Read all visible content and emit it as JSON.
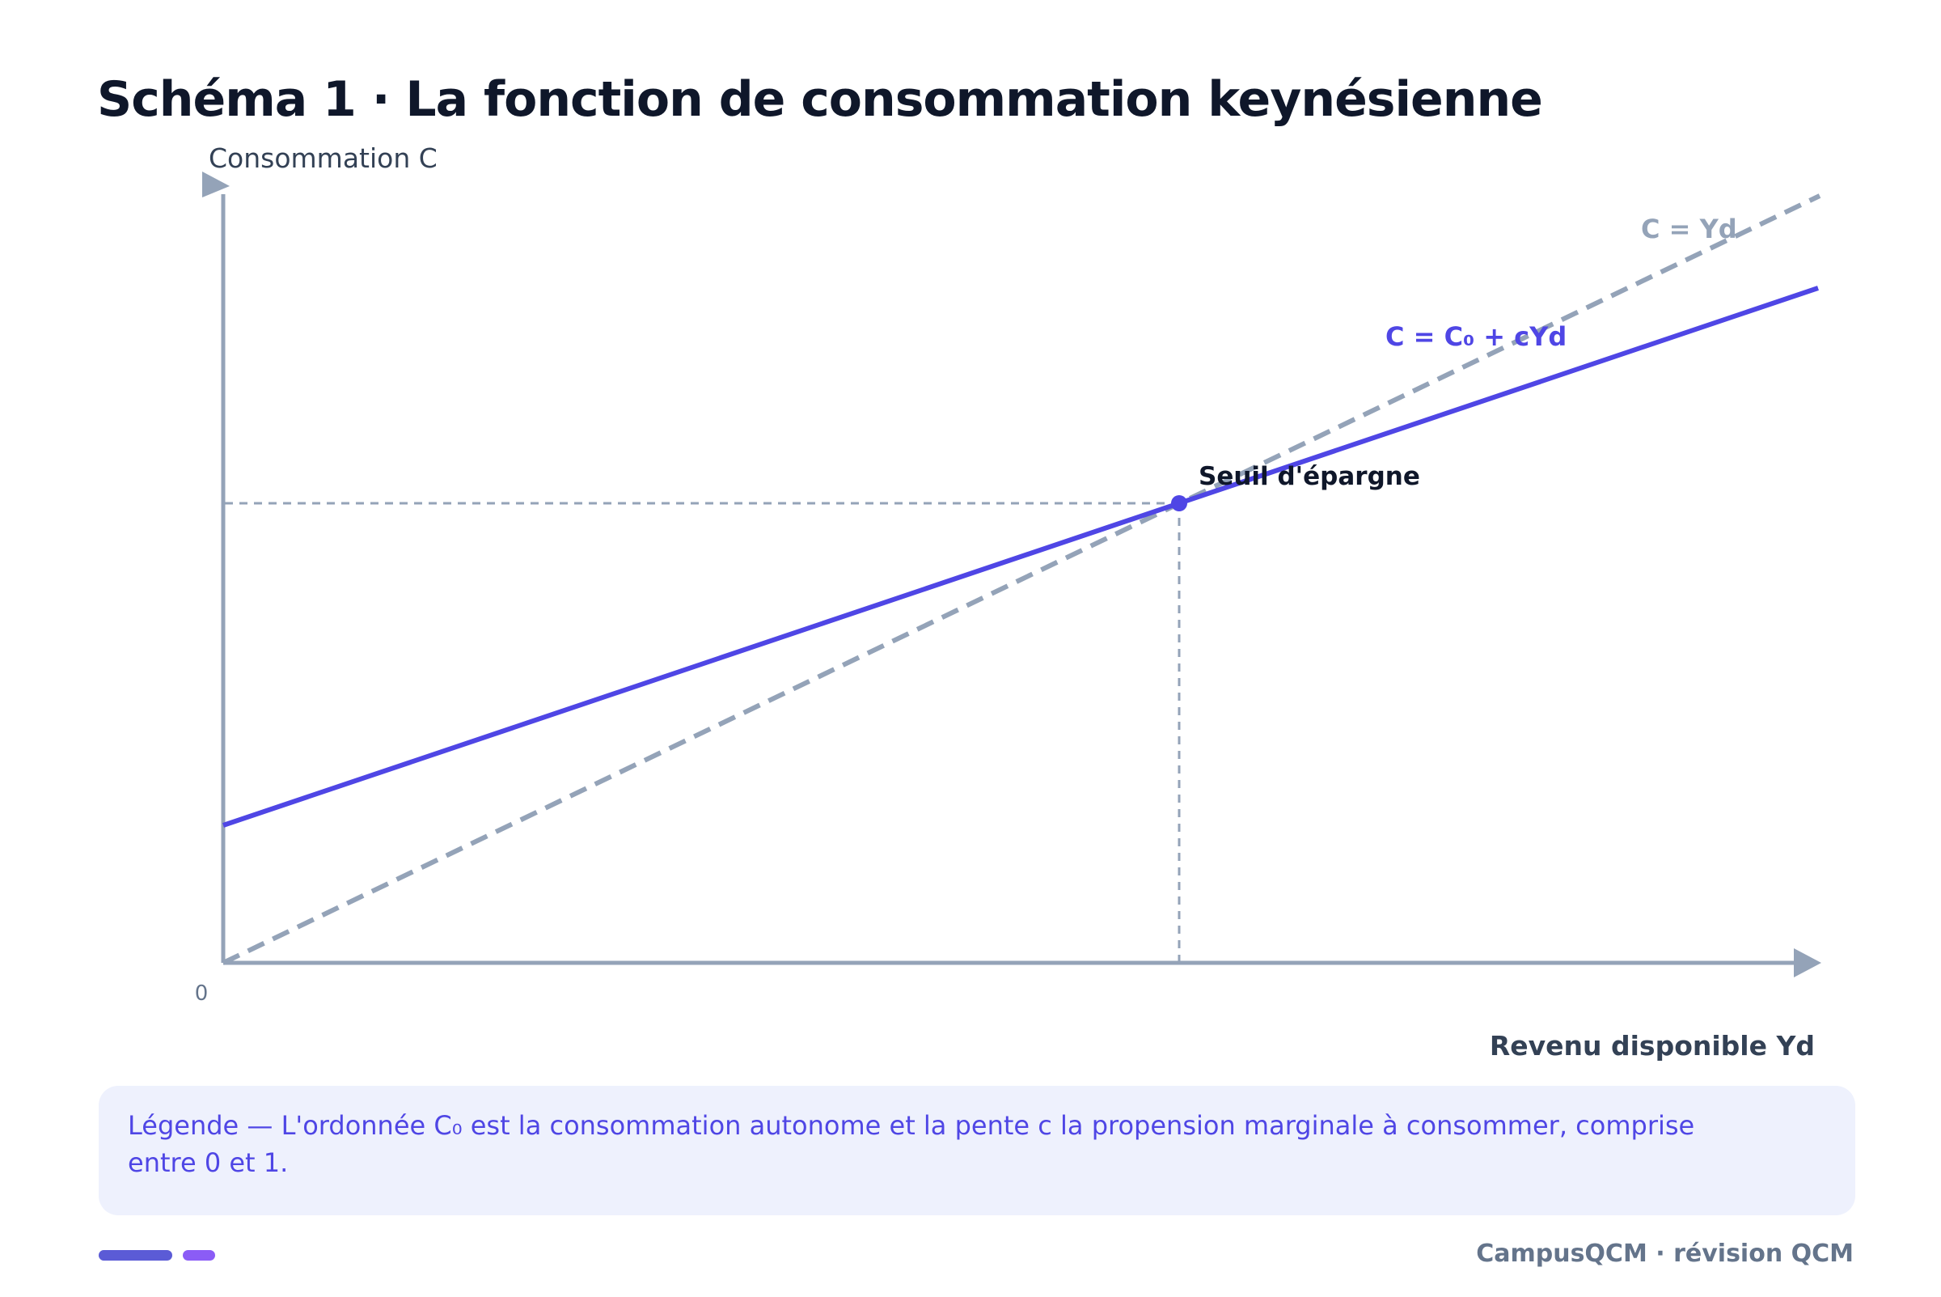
{
  "header": {
    "title": "Schéma 1 · La fonction de consommation keynésienne"
  },
  "diagram": {
    "y_axis_label": "Consommation C",
    "x_axis_label": "Revenu disponible Yd",
    "origin_label": "0",
    "line_45_label": "C = Yd",
    "consumption_label": "C = C₀ + cYd",
    "threshold_label": "Seuil d'épargne",
    "colors": {
      "axis": "#94a3b8",
      "consumption": "#4f46e5",
      "line_45": "#94a3b8",
      "guide": "#94a3b8"
    }
  },
  "legend": {
    "text": "Légende — L'ordonnée C₀ est la consommation autonome et la pente c la propension marginale à consommer, comprise entre 0 et 1."
  },
  "footer": {
    "brand": "CampusQCM · révision QCM",
    "accent_colors": [
      "#5b5bd6",
      "#8b5cf6"
    ]
  }
}
